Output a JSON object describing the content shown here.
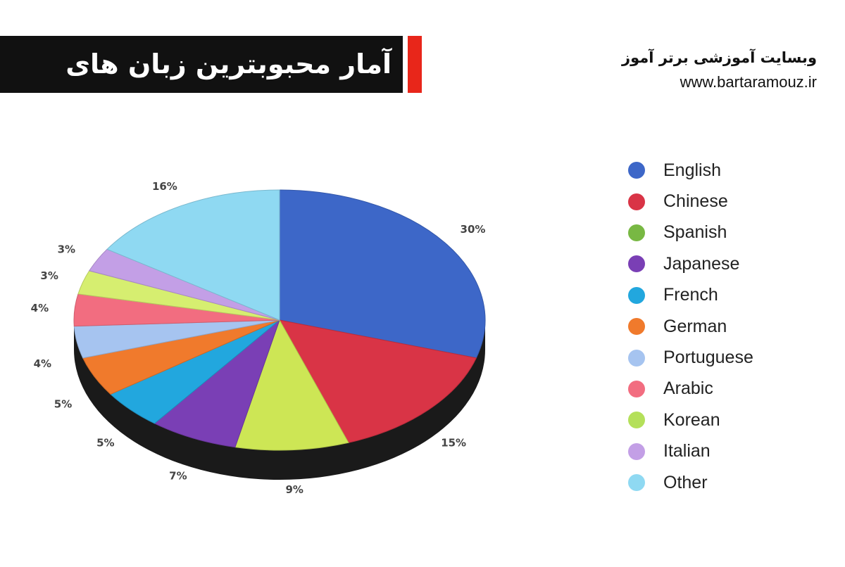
{
  "header": {
    "title": "آمار محبوبترین زبان های جهانی",
    "site_name": "وبسایت آموزشی برتر آموز",
    "site_url": "www.bartaramouz.ir"
  },
  "chart_data": {
    "type": "pie",
    "title": "آمار محبوبترین زبان های جهانی",
    "legend_position": "right",
    "slices": [
      {
        "label": "English",
        "value": 30,
        "display": "30%",
        "color": "#3d67c8"
      },
      {
        "label": "Chinese",
        "value": 15,
        "display": "15%",
        "color": "#d93446"
      },
      {
        "label": "Spanish",
        "value": 9,
        "display": "9%",
        "color": "#cde655"
      },
      {
        "label": "Japanese",
        "value": 7,
        "display": "7%",
        "color": "#7a3fb5"
      },
      {
        "label": "French",
        "value": 5,
        "display": "5%",
        "color": "#22a7de"
      },
      {
        "label": "German",
        "value": 5,
        "display": "5%",
        "color": "#f07a2c"
      },
      {
        "label": "Portuguese",
        "value": 4,
        "display": "4%",
        "color": "#a6c4f0"
      },
      {
        "label": "Arabic",
        "value": 4,
        "display": "4%",
        "color": "#f26d80"
      },
      {
        "label": "Korean",
        "value": 3,
        "display": "3%",
        "color": "#d6ee70"
      },
      {
        "label": "Italian",
        "value": 3,
        "display": "3%",
        "color": "#c39fe6"
      },
      {
        "label": "Other",
        "value": 16,
        "display": "16%",
        "color": "#8fd9f2"
      }
    ],
    "legend_order": [
      {
        "label": "English",
        "color": "#3d67c8"
      },
      {
        "label": "Chinese",
        "color": "#d93446"
      },
      {
        "label": "Spanish",
        "color": "#78b843"
      },
      {
        "label": "Japanese",
        "color": "#7a3fb5"
      },
      {
        "label": "French",
        "color": "#22a7de"
      },
      {
        "label": "German",
        "color": "#f07a2c"
      },
      {
        "label": "Portuguese",
        "color": "#a6c4f0"
      },
      {
        "label": "Arabic",
        "color": "#f26d80"
      },
      {
        "label": "Korean",
        "color": "#b4e05a"
      },
      {
        "label": "Italian",
        "color": "#c39fe6"
      },
      {
        "label": "Other",
        "color": "#8fd9f2"
      }
    ]
  }
}
